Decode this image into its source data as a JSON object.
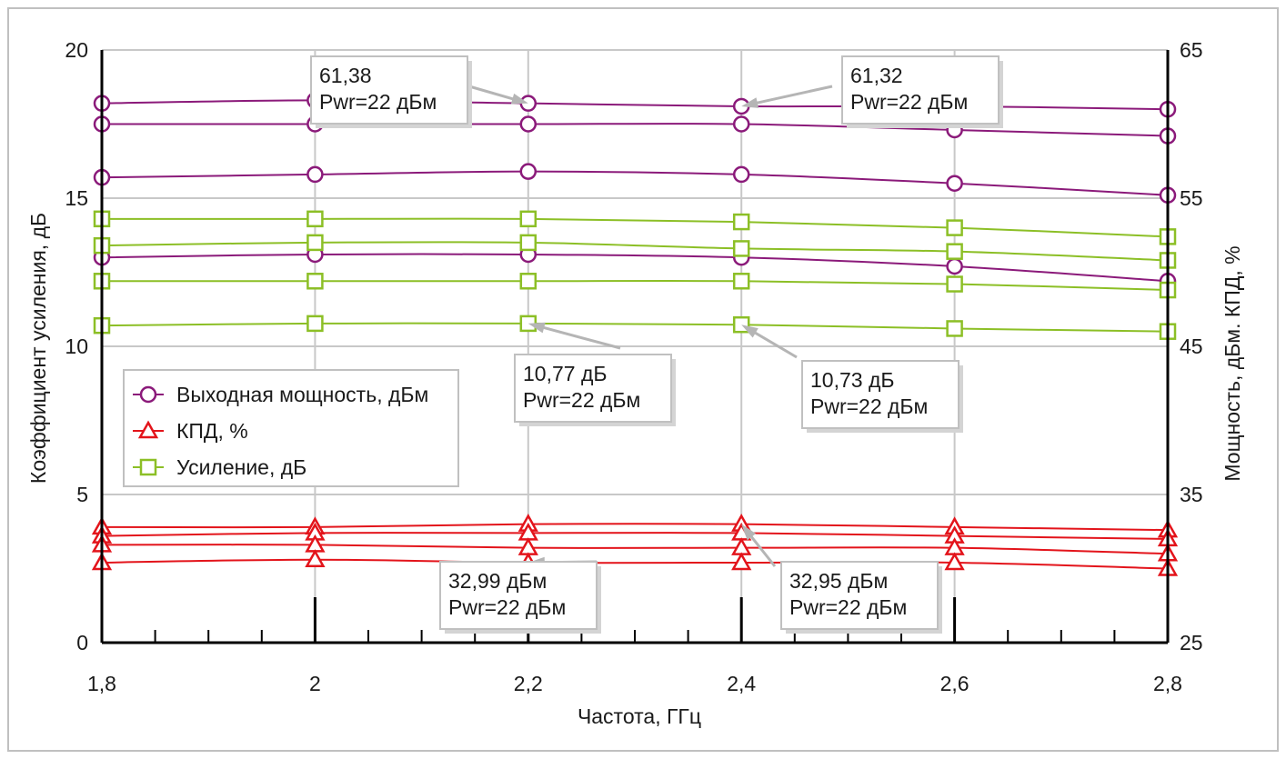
{
  "chart_data": {
    "type": "line",
    "xlabel": "Частота, ГГц",
    "ylabel_left": "Коэффициент усиления, дБ",
    "ylabel_right": "Мощность, дБм. КПД, %",
    "x": [
      1.8,
      2.0,
      2.2,
      2.4,
      2.6,
      2.8
    ],
    "x_ticks": [
      "1,8",
      "2",
      "2,2",
      "2,4",
      "2,6",
      "2,8"
    ],
    "ylim_left": [
      0,
      20
    ],
    "ylim_right": [
      25,
      65
    ],
    "y_ticks_left": [
      "0",
      "5",
      "10",
      "15",
      "20"
    ],
    "y_ticks_right": [
      "25",
      "35",
      "45",
      "55",
      "65"
    ],
    "grid": true,
    "legend_position": "middle-left",
    "colors": {
      "power": "#8b1a7a",
      "efficiency": "#e3141b",
      "gain": "#8cbf26",
      "grid": "#c8c8c8",
      "frame": "#c0c0c0"
    },
    "legend": [
      {
        "label": "Выходная мощность, дБм",
        "marker": "circle",
        "group": "power"
      },
      {
        "label": "КПД, %",
        "marker": "triangle",
        "group": "efficiency"
      },
      {
        "label": "Усиление, дБ",
        "marker": "square",
        "group": "gain"
      }
    ],
    "series": [
      {
        "group": "power",
        "axis": "left",
        "values": [
          18.2,
          18.3,
          18.2,
          18.1,
          18.1,
          18.0
        ]
      },
      {
        "group": "power",
        "axis": "left",
        "values": [
          17.5,
          17.5,
          17.5,
          17.5,
          17.3,
          17.1
        ]
      },
      {
        "group": "power",
        "axis": "left",
        "values": [
          15.7,
          15.8,
          15.9,
          15.8,
          15.5,
          15.1
        ]
      },
      {
        "group": "power",
        "axis": "left",
        "values": [
          13.0,
          13.1,
          13.1,
          13.0,
          12.7,
          12.2
        ]
      },
      {
        "group": "gain",
        "axis": "left",
        "values": [
          14.3,
          14.3,
          14.3,
          14.2,
          14.0,
          13.7
        ]
      },
      {
        "group": "gain",
        "axis": "left",
        "values": [
          13.4,
          13.5,
          13.5,
          13.3,
          13.2,
          12.9
        ]
      },
      {
        "group": "gain",
        "axis": "left",
        "values": [
          12.2,
          12.2,
          12.2,
          12.2,
          12.1,
          11.9
        ]
      },
      {
        "group": "gain",
        "axis": "left",
        "values": [
          10.7,
          10.77,
          10.77,
          10.73,
          10.6,
          10.5
        ]
      },
      {
        "group": "efficiency",
        "axis": "left",
        "values": [
          3.9,
          3.9,
          4.0,
          4.0,
          3.9,
          3.8
        ]
      },
      {
        "group": "efficiency",
        "axis": "left",
        "values": [
          3.6,
          3.7,
          3.7,
          3.7,
          3.6,
          3.5
        ]
      },
      {
        "group": "efficiency",
        "axis": "left",
        "values": [
          3.3,
          3.3,
          3.2,
          3.2,
          3.2,
          3.0
        ]
      },
      {
        "group": "efficiency",
        "axis": "left",
        "values": [
          2.7,
          2.8,
          2.7,
          2.7,
          2.7,
          2.5
        ]
      }
    ],
    "annotations": [
      {
        "lines": [
          "61,38",
          "Pwr=22 дБм"
        ],
        "target_x": 2.2,
        "target_y_left": 18.2
      },
      {
        "lines": [
          "61,32",
          "Pwr=22 дБм"
        ],
        "target_x": 2.4,
        "target_y_left": 18.1
      },
      {
        "lines": [
          "10,77 дБ",
          "Pwr=22 дБм"
        ],
        "target_x": 2.2,
        "target_y_left": 10.77
      },
      {
        "lines": [
          "10,73 дБ",
          "Pwr=22 дБм"
        ],
        "target_x": 2.4,
        "target_y_left": 10.73
      },
      {
        "lines": [
          "32,99 дБм",
          "Pwr=22 дБм"
        ],
        "target_x": 2.2,
        "target_y_left": 2.7
      },
      {
        "lines": [
          "32,95 дБм",
          "Pwr=22 дБм"
        ],
        "target_x": 2.4,
        "target_y_left": 4.0
      }
    ]
  }
}
